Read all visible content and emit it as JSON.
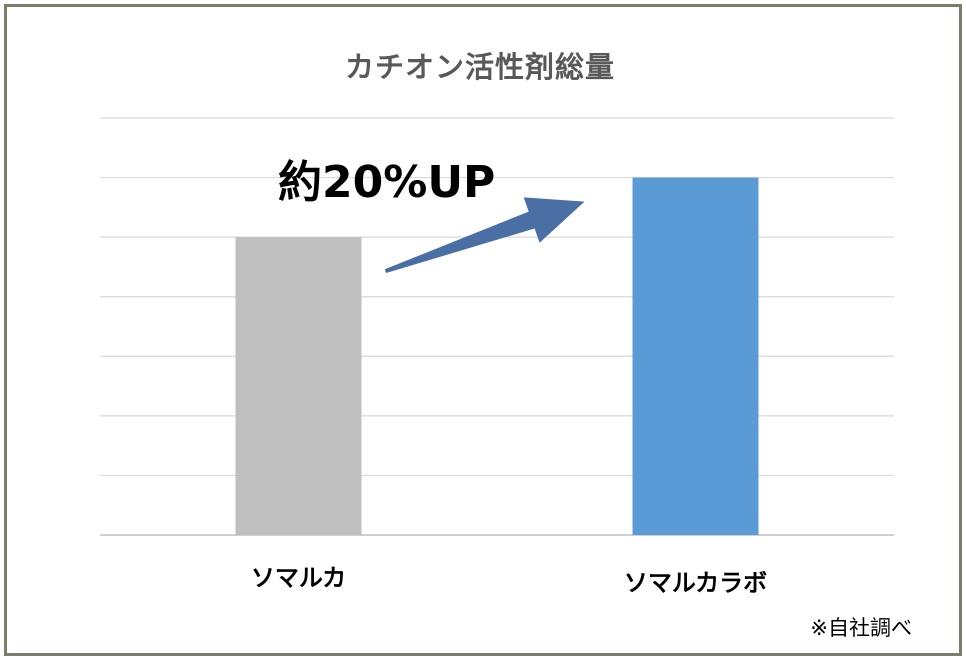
{
  "chart_data": {
    "type": "bar",
    "title": "カチオン活性剤総量",
    "categories": [
      "ソマルカ",
      "ソマルカラボ"
    ],
    "values": [
      100,
      120
    ],
    "ylim": [
      0,
      140
    ],
    "grid": true,
    "colors": [
      "#bfbfbf",
      "#5b9bd5"
    ],
    "annotation": "約20%UP",
    "arrow_color": "#4a6fa5"
  },
  "note": "※自社調べ"
}
